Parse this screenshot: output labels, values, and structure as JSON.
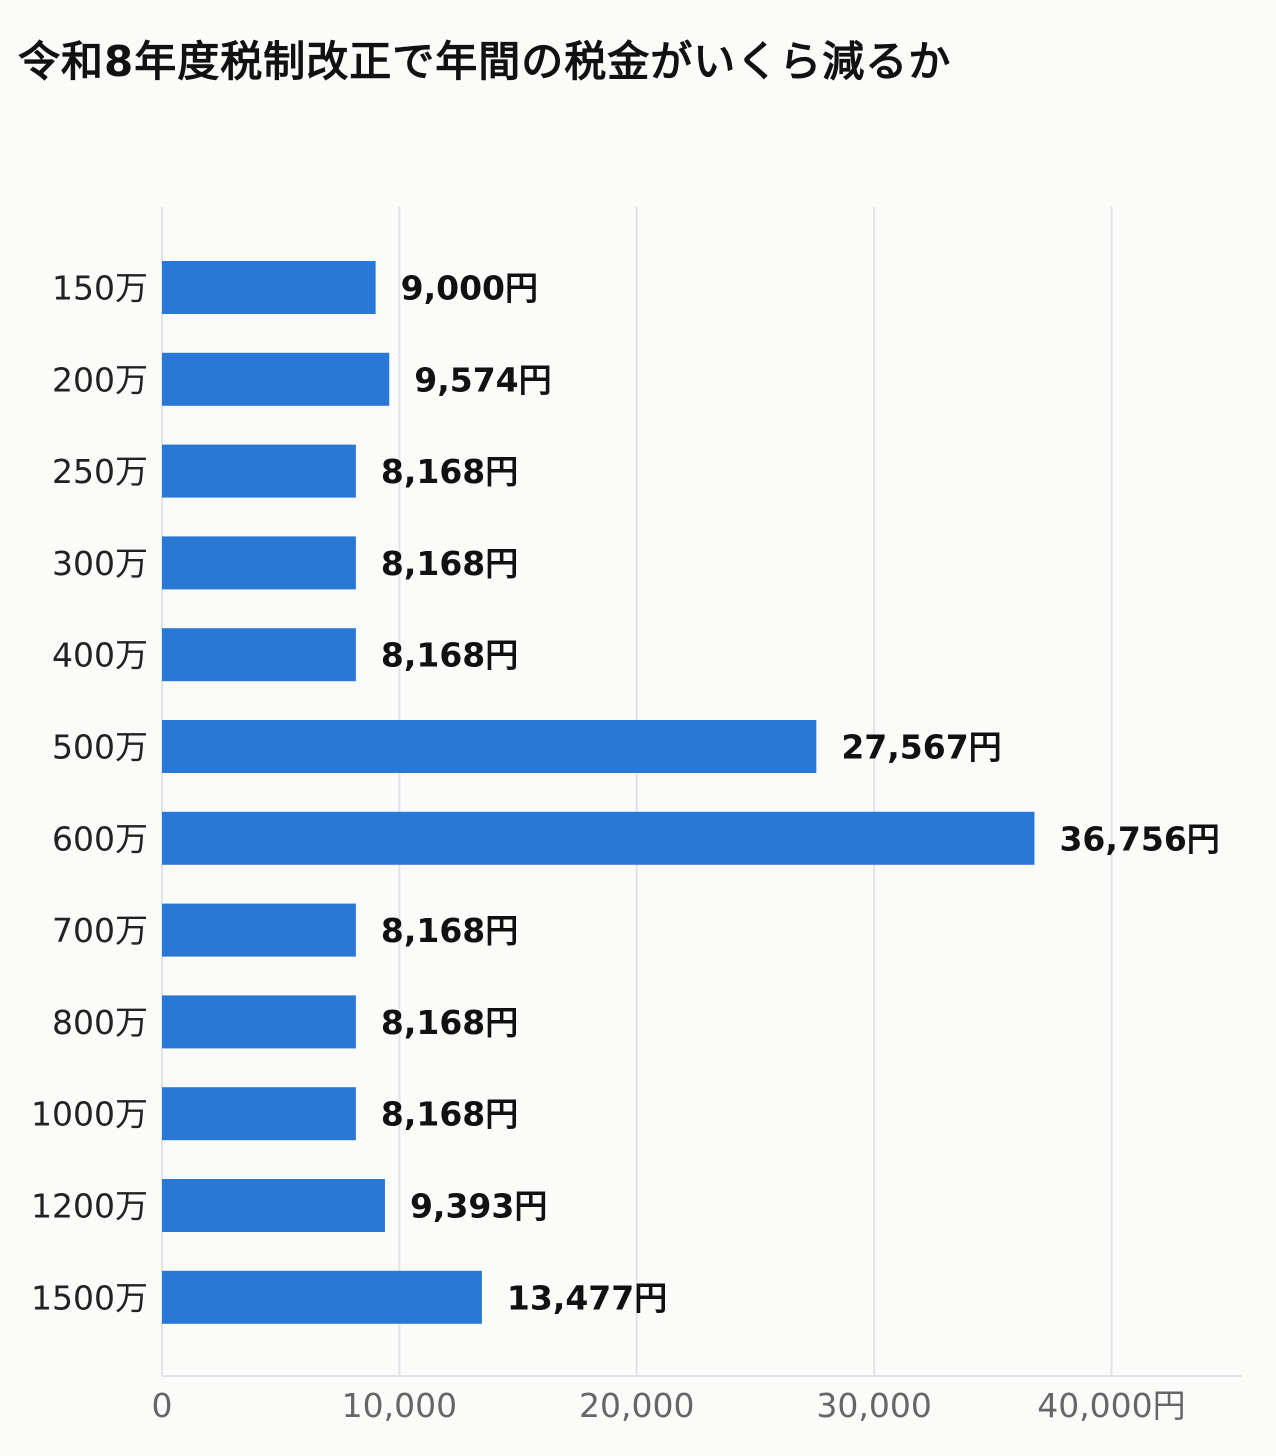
{
  "chart_data": {
    "type": "bar",
    "orientation": "horizontal",
    "title": "令和8年度税制改正で年間の税金がいくら減るか",
    "categories": [
      "150万",
      "200万",
      "250万",
      "300万",
      "400万",
      "500万",
      "600万",
      "700万",
      "800万",
      "1000万",
      "1200万",
      "1500万"
    ],
    "values": [
      9000,
      9574,
      8168,
      8168,
      8168,
      27567,
      36756,
      8168,
      8168,
      8168,
      9393,
      13477
    ],
    "value_labels": [
      "9,000円",
      "9,574円",
      "8,168円",
      "8,168円",
      "8,168円",
      "27,567円",
      "36,756円",
      "8,168円",
      "8,168円",
      "8,168円",
      "9,393円",
      "13,477円"
    ],
    "x_ticks": [
      0,
      10000,
      20000,
      30000,
      40000
    ],
    "x_tick_labels": [
      "0",
      "10,000",
      "20,000",
      "30,000",
      "40,000円"
    ],
    "xlim": [
      0,
      45500
    ],
    "grid": "vertical",
    "legend": "none",
    "bar_color": "#2a78d6",
    "grid_color": "#e3e3e3"
  }
}
